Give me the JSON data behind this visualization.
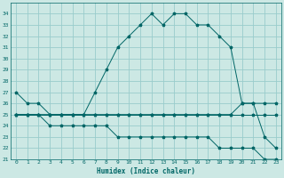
{
  "xlabel": "Humidex (Indice chaleur)",
  "bg_color": "#cce8e4",
  "grid_color": "#99cccc",
  "line_color": "#006666",
  "hours": [
    0,
    1,
    2,
    3,
    4,
    5,
    6,
    7,
    8,
    9,
    10,
    11,
    12,
    13,
    14,
    15,
    16,
    17,
    18,
    19,
    20,
    21,
    22,
    23
  ],
  "humidex": [
    27,
    26,
    26,
    25,
    25,
    25,
    25,
    27,
    29,
    31,
    32,
    33,
    34,
    33,
    34,
    34,
    33,
    33,
    32,
    31,
    26,
    26,
    23,
    22
  ],
  "line2": [
    25,
    25,
    25,
    25,
    25,
    25,
    25,
    25,
    25,
    25,
    25,
    25,
    25,
    25,
    25,
    25,
    25,
    25,
    25,
    25,
    26,
    26,
    26,
    26
  ],
  "line3": [
    25,
    25,
    25,
    25,
    25,
    25,
    25,
    25,
    25,
    25,
    25,
    25,
    25,
    25,
    25,
    25,
    25,
    25,
    25,
    25,
    25,
    25,
    25,
    25
  ],
  "line4": [
    25,
    25,
    25,
    24,
    24,
    24,
    24,
    24,
    24,
    23,
    23,
    23,
    23,
    23,
    23,
    23,
    23,
    23,
    22,
    22,
    22,
    22,
    21,
    21
  ],
  "ylim": [
    21,
    35
  ],
  "xlim": [
    -0.5,
    23.5
  ],
  "yticks": [
    21,
    22,
    23,
    24,
    25,
    26,
    27,
    28,
    29,
    30,
    31,
    32,
    33,
    34
  ],
  "xticks": [
    0,
    1,
    2,
    3,
    4,
    5,
    6,
    7,
    8,
    9,
    10,
    11,
    12,
    13,
    14,
    15,
    16,
    17,
    18,
    19,
    20,
    21,
    22,
    23
  ]
}
